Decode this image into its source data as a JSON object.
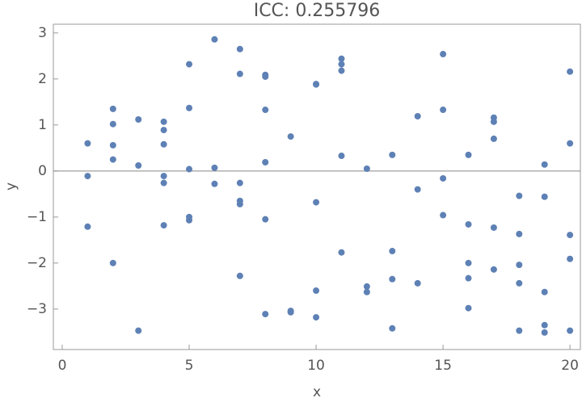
{
  "chart_data": {
    "type": "scatter",
    "title": "ICC: 0.255796",
    "x_label": "x",
    "y_label": "y",
    "color": "#5e81b5",
    "x": [
      1,
      1,
      1,
      2,
      2,
      2,
      2,
      2,
      3,
      3,
      3,
      4,
      4,
      4,
      4,
      4,
      4,
      5,
      5,
      5,
      5,
      5,
      6,
      6,
      6,
      7,
      7,
      7,
      7,
      7,
      7,
      8,
      8,
      8,
      8,
      8,
      8,
      9,
      9,
      9,
      10,
      10,
      10,
      10,
      10,
      11,
      11,
      11,
      11,
      11,
      12,
      12,
      12,
      13,
      13,
      13,
      13,
      14,
      14,
      14,
      15,
      15,
      15,
      15,
      16,
      16,
      16,
      16,
      16,
      17,
      17,
      17,
      17,
      17,
      18,
      18,
      18,
      18,
      18,
      19,
      19,
      19,
      19,
      19,
      20,
      20,
      20,
      20,
      20
    ],
    "values": [
      0.6,
      -0.11,
      -1.21,
      1.35,
      1.02,
      0.56,
      0.25,
      -2.0,
      1.12,
      0.12,
      -3.47,
      1.07,
      0.89,
      0.58,
      -0.11,
      -0.26,
      -1.18,
      2.32,
      1.37,
      0.04,
      -1.0,
      -1.07,
      2.86,
      0.07,
      -0.28,
      2.65,
      2.11,
      -0.26,
      -0.65,
      -0.72,
      -2.28,
      2.09,
      2.05,
      1.33,
      0.19,
      -1.05,
      -3.11,
      0.75,
      -3.04,
      -3.07,
      1.89,
      1.88,
      -0.68,
      -2.6,
      -3.18,
      2.44,
      2.32,
      2.18,
      0.33,
      -1.77,
      0.05,
      -2.51,
      -2.63,
      0.35,
      -1.74,
      -2.35,
      -3.42,
      1.19,
      -0.4,
      -2.44,
      2.54,
      1.33,
      -0.16,
      -0.96,
      0.35,
      -1.16,
      -2.0,
      -2.33,
      -2.98,
      1.16,
      1.07,
      0.7,
      -1.23,
      -2.14,
      -0.54,
      -1.37,
      -2.04,
      -2.44,
      -3.47,
      0.14,
      -0.56,
      -2.63,
      -3.35,
      -3.51,
      2.16,
      0.6,
      -1.39,
      -1.91,
      -3.47
    ],
    "xlim": [
      -0.35,
      20.41
    ],
    "ylim": [
      -3.88,
      3.19
    ],
    "xticks": [
      0,
      5,
      10,
      15,
      20
    ],
    "yticks": [
      {
        "value": -3,
        "label": "−3"
      },
      {
        "value": -2,
        "label": "−2"
      },
      {
        "value": -1,
        "label": "−1"
      },
      0,
      1,
      2,
      3
    ],
    "zero_line": true
  }
}
